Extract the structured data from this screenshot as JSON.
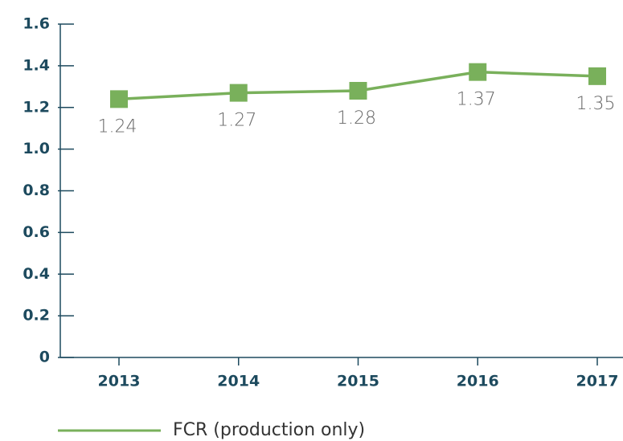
{
  "chart_data": {
    "type": "line",
    "categories": [
      "2013",
      "2014",
      "2015",
      "2016",
      "2017"
    ],
    "series": [
      {
        "name": "FCR (production only)",
        "color": "#79b05b",
        "values": [
          1.24,
          1.27,
          1.28,
          1.37,
          1.35
        ]
      }
    ],
    "ylim": [
      0,
      1.6
    ],
    "yticks": [
      0,
      0.2,
      0.4,
      0.6,
      0.8,
      {
        "value": 1,
        "label": "1.0"
      },
      1.2,
      1.4,
      1.6
    ],
    "legend": "bottom-left"
  }
}
